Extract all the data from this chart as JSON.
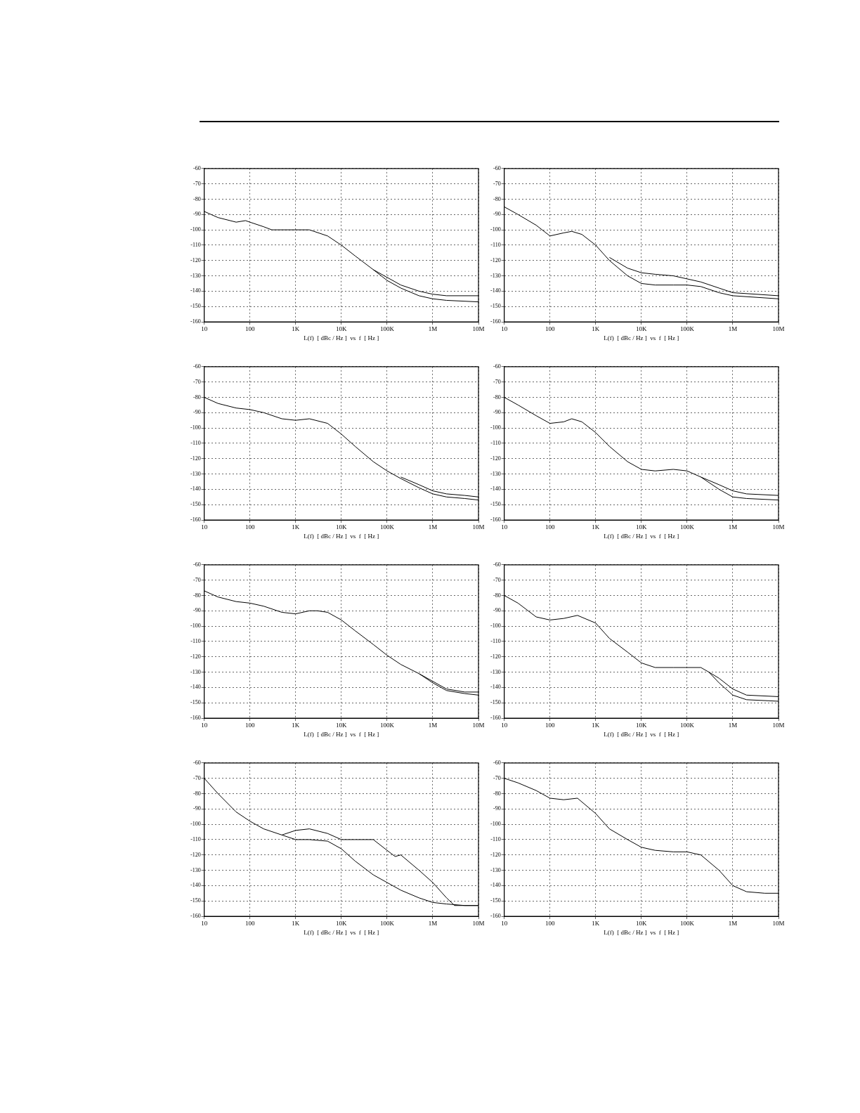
{
  "chart_data": [
    {
      "type": "line",
      "xlabel": "L(f)  [ dBc / Hz ]  vs  f  [ Hz ]",
      "log": "x",
      "grid": true,
      "legend": false,
      "marker": "none",
      "line_style": "solid",
      "xlim": [
        10,
        10000000
      ],
      "xticks": [
        {
          "value": 10,
          "label": "10"
        },
        {
          "value": 100,
          "label": "100"
        },
        {
          "value": 1000,
          "label": "1K"
        },
        {
          "value": 10000,
          "label": "10K"
        },
        {
          "value": 100000,
          "label": "100K"
        },
        {
          "value": 1000000,
          "label": "1M"
        },
        {
          "value": 10000000,
          "label": "10M"
        }
      ],
      "ylim": [
        -160,
        -60
      ],
      "yticks": [
        -160,
        -150,
        -140,
        -130,
        -120,
        -110,
        -100,
        -90,
        -80,
        -70,
        -60
      ],
      "series": [
        {
          "color": "#000000",
          "x": [
            10,
            20,
            50,
            80,
            100,
            200,
            300,
            1000,
            2000,
            5000,
            10000,
            20000,
            50000,
            100000,
            200000,
            500000,
            1000000,
            2000000,
            10000000
          ],
          "values": [
            -88,
            -92,
            -95,
            -94,
            -95,
            -98,
            -100,
            -100,
            -100,
            -104,
            -110,
            -117,
            -126,
            -133,
            -138,
            -143,
            -145,
            -146,
            -147
          ]
        },
        {
          "color": "#000000",
          "x": [
            50000,
            100000,
            200000,
            500000,
            1000000,
            2000000,
            10000000
          ],
          "values": [
            -126,
            -131,
            -136,
            -140,
            -142,
            -143,
            -143
          ]
        }
      ]
    },
    {
      "type": "line",
      "xlabel": "L(f)  [ dBc / Hz ]  vs  f  [ Hz ]",
      "log": "x",
      "grid": true,
      "legend": false,
      "marker": "none",
      "line_style": "solid",
      "xlim": [
        10,
        10000000
      ],
      "xticks": [
        {
          "value": 10,
          "label": "10"
        },
        {
          "value": 100,
          "label": "100"
        },
        {
          "value": 1000,
          "label": "1K"
        },
        {
          "value": 10000,
          "label": "10K"
        },
        {
          "value": 100000,
          "label": "100K"
        },
        {
          "value": 1000000,
          "label": "1M"
        },
        {
          "value": 10000000,
          "label": "10M"
        }
      ],
      "ylim": [
        -160,
        -60
      ],
      "yticks": [
        -160,
        -150,
        -140,
        -130,
        -120,
        -110,
        -100,
        -90,
        -80,
        -70,
        -60
      ],
      "series": [
        {
          "color": "#000000",
          "x": [
            10,
            20,
            50,
            100,
            200,
            300,
            500,
            1000,
            2000,
            5000,
            10000,
            20000,
            50000,
            100000,
            200000,
            500000,
            1000000,
            10000000
          ],
          "values": [
            -85,
            -90,
            -97,
            -104,
            -102,
            -101,
            -103,
            -110,
            -120,
            -130,
            -135,
            -136,
            -136,
            -136,
            -137,
            -141,
            -143,
            -145
          ]
        },
        {
          "color": "#000000",
          "x": [
            2000,
            5000,
            10000,
            20000,
            50000,
            100000,
            200000,
            500000,
            1000000,
            10000000
          ],
          "values": [
            -118,
            -125,
            -128,
            -129,
            -130,
            -132,
            -134,
            -138,
            -141,
            -143
          ]
        }
      ]
    },
    {
      "type": "line",
      "xlabel": "L(f)  [ dBc / Hz ]  vs  f  [ Hz ]",
      "log": "x",
      "grid": true,
      "legend": false,
      "marker": "none",
      "line_style": "solid",
      "xlim": [
        10,
        10000000
      ],
      "xticks": [
        {
          "value": 10,
          "label": "10"
        },
        {
          "value": 100,
          "label": "100"
        },
        {
          "value": 1000,
          "label": "1K"
        },
        {
          "value": 10000,
          "label": "10K"
        },
        {
          "value": 100000,
          "label": "100K"
        },
        {
          "value": 1000000,
          "label": "1M"
        },
        {
          "value": 10000000,
          "label": "10M"
        }
      ],
      "ylim": [
        -160,
        -60
      ],
      "yticks": [
        -160,
        -150,
        -140,
        -130,
        -120,
        -110,
        -100,
        -90,
        -80,
        -70,
        -60
      ],
      "series": [
        {
          "color": "#000000",
          "x": [
            10,
            20,
            50,
            100,
            200,
            500,
            1000,
            2000,
            5000,
            10000,
            20000,
            50000,
            100000,
            200000,
            500000,
            1000000,
            2000000,
            5000000,
            10000000
          ],
          "values": [
            -80,
            -84,
            -87,
            -88,
            -90,
            -94,
            -95,
            -94,
            -97,
            -104,
            -112,
            -122,
            -128,
            -133,
            -139,
            -143,
            -145,
            -146,
            -147
          ]
        },
        {
          "color": "#000000",
          "x": [
            200000,
            500000,
            1000000,
            2000000,
            5000000,
            10000000
          ],
          "values": [
            -132,
            -137,
            -141,
            -143,
            -144,
            -145
          ]
        }
      ]
    },
    {
      "type": "line",
      "xlabel": "L(f)  [ dBc / Hz ]  vs  f  [ Hz ]",
      "log": "x",
      "grid": true,
      "legend": false,
      "marker": "none",
      "line_style": "solid",
      "xlim": [
        10,
        10000000
      ],
      "xticks": [
        {
          "value": 10,
          "label": "10"
        },
        {
          "value": 100,
          "label": "100"
        },
        {
          "value": 1000,
          "label": "1K"
        },
        {
          "value": 10000,
          "label": "10K"
        },
        {
          "value": 100000,
          "label": "100K"
        },
        {
          "value": 1000000,
          "label": "1M"
        },
        {
          "value": 10000000,
          "label": "10M"
        }
      ],
      "ylim": [
        -160,
        -60
      ],
      "yticks": [
        -160,
        -150,
        -140,
        -130,
        -120,
        -110,
        -100,
        -90,
        -80,
        -70,
        -60
      ],
      "series": [
        {
          "color": "#000000",
          "x": [
            10,
            20,
            50,
            100,
            200,
            300,
            500,
            1000,
            2000,
            5000,
            10000,
            20000,
            50000,
            100000,
            200000,
            500000,
            1000000,
            2000000,
            10000000
          ],
          "values": [
            -80,
            -85,
            -92,
            -97,
            -96,
            -94,
            -96,
            -103,
            -112,
            -122,
            -127,
            -128,
            -127,
            -128,
            -132,
            -140,
            -145,
            -146,
            -147
          ]
        },
        {
          "color": "#000000",
          "x": [
            200000,
            500000,
            1000000,
            2000000,
            10000000
          ],
          "values": [
            -132,
            -137,
            -141,
            -143,
            -144
          ]
        }
      ]
    },
    {
      "type": "line",
      "xlabel": "L(f)  [ dBc / Hz ]  vs  f  [ Hz ]",
      "log": "x",
      "grid": true,
      "legend": false,
      "marker": "none",
      "line_style": "solid",
      "xlim": [
        10,
        10000000
      ],
      "xticks": [
        {
          "value": 10,
          "label": "10"
        },
        {
          "value": 100,
          "label": "100"
        },
        {
          "value": 1000,
          "label": "1K"
        },
        {
          "value": 10000,
          "label": "10K"
        },
        {
          "value": 100000,
          "label": "100K"
        },
        {
          "value": 1000000,
          "label": "1M"
        },
        {
          "value": 10000000,
          "label": "10M"
        }
      ],
      "ylim": [
        -160,
        -60
      ],
      "yticks": [
        -160,
        -150,
        -140,
        -130,
        -120,
        -110,
        -100,
        -90,
        -80,
        -70,
        -60
      ],
      "series": [
        {
          "color": "#000000",
          "x": [
            10,
            20,
            50,
            100,
            200,
            500,
            1000,
            2000,
            3000,
            5000,
            10000,
            20000,
            50000,
            100000,
            200000,
            500000,
            1000000,
            2000000,
            5000000,
            10000000
          ],
          "values": [
            -77,
            -81,
            -84,
            -85,
            -87,
            -91,
            -92,
            -90,
            -90,
            -91,
            -96,
            -103,
            -112,
            -119,
            -125,
            -131,
            -137,
            -142,
            -144,
            -145
          ]
        },
        {
          "color": "#000000",
          "x": [
            500000,
            1000000,
            2000000,
            5000000,
            10000000
          ],
          "values": [
            -131,
            -136,
            -141,
            -143,
            -143
          ]
        }
      ]
    },
    {
      "type": "line",
      "xlabel": "L(f)  [ dBc / Hz ]  vs  f  [ Hz ]",
      "log": "x",
      "grid": true,
      "legend": false,
      "marker": "none",
      "line_style": "solid",
      "xlim": [
        10,
        10000000
      ],
      "xticks": [
        {
          "value": 10,
          "label": "10"
        },
        {
          "value": 100,
          "label": "100"
        },
        {
          "value": 1000,
          "label": "1K"
        },
        {
          "value": 10000,
          "label": "10K"
        },
        {
          "value": 100000,
          "label": "100K"
        },
        {
          "value": 1000000,
          "label": "1M"
        },
        {
          "value": 10000000,
          "label": "10M"
        }
      ],
      "ylim": [
        -160,
        -60
      ],
      "yticks": [
        -160,
        -150,
        -140,
        -130,
        -120,
        -110,
        -100,
        -90,
        -80,
        -70,
        -60
      ],
      "series": [
        {
          "color": "#000000",
          "x": [
            10,
            20,
            50,
            100,
            200,
            400,
            1000,
            2000,
            5000,
            10000,
            20000,
            50000,
            100000,
            200000,
            300000,
            500000,
            1000000,
            2000000,
            10000000
          ],
          "values": [
            -80,
            -85,
            -94,
            -96,
            -95,
            -93,
            -98,
            -108,
            -117,
            -124,
            -127,
            -127,
            -127,
            -127,
            -130,
            -137,
            -145,
            -148,
            -149
          ]
        },
        {
          "color": "#000000",
          "x": [
            300000,
            500000,
            1000000,
            2000000,
            10000000
          ],
          "values": [
            -130,
            -134,
            -141,
            -145,
            -146
          ]
        }
      ]
    },
    {
      "type": "line",
      "xlabel": "L(f)  [ dBc / Hz ]  vs  f  [ Hz ]",
      "log": "x",
      "grid": true,
      "legend": false,
      "marker": "none",
      "line_style": "solid",
      "xlim": [
        10,
        10000000
      ],
      "xticks": [
        {
          "value": 10,
          "label": "10"
        },
        {
          "value": 100,
          "label": "100"
        },
        {
          "value": 1000,
          "label": "1K"
        },
        {
          "value": 10000,
          "label": "10K"
        },
        {
          "value": 100000,
          "label": "100K"
        },
        {
          "value": 1000000,
          "label": "1M"
        },
        {
          "value": 10000000,
          "label": "10M"
        }
      ],
      "ylim": [
        -160,
        -60
      ],
      "yticks": [
        -160,
        -150,
        -140,
        -130,
        -120,
        -110,
        -100,
        -90,
        -80,
        -70,
        -60
      ],
      "series": [
        {
          "color": "#000000",
          "x": [
            10,
            20,
            50,
            100,
            200,
            500,
            1000,
            2000,
            5000,
            10000,
            20000,
            50000,
            100000,
            150000,
            200000,
            500000,
            1000000,
            2000000,
            3000000,
            10000000
          ],
          "values": [
            -70,
            -80,
            -92,
            -98,
            -103,
            -107,
            -104,
            -103,
            -106,
            -110,
            -110,
            -110,
            -117,
            -121,
            -120,
            -130,
            -138,
            -148,
            -153,
            -153
          ]
        },
        {
          "color": "#000000",
          "x": [
            500,
            1000,
            2000,
            5000,
            10000,
            20000,
            50000,
            100000,
            200000,
            500000,
            1000000,
            2000000,
            5000000,
            10000000
          ],
          "values": [
            -107,
            -110,
            -110,
            -111,
            -116,
            -124,
            -133,
            -138,
            -143,
            -148,
            -151,
            -152,
            -153,
            -153
          ]
        }
      ]
    },
    {
      "type": "line",
      "xlabel": "L(f)  [ dBc / Hz ]  vs  f  [ Hz ]",
      "log": "x",
      "grid": true,
      "legend": false,
      "marker": "none",
      "line_style": "solid",
      "xlim": [
        10,
        10000000
      ],
      "xticks": [
        {
          "value": 10,
          "label": "10"
        },
        {
          "value": 100,
          "label": "100"
        },
        {
          "value": 1000,
          "label": "1K"
        },
        {
          "value": 10000,
          "label": "10K"
        },
        {
          "value": 100000,
          "label": "100K"
        },
        {
          "value": 1000000,
          "label": "1M"
        },
        {
          "value": 10000000,
          "label": "10M"
        }
      ],
      "ylim": [
        -160,
        -60
      ],
      "yticks": [
        -160,
        -150,
        -140,
        -130,
        -120,
        -110,
        -100,
        -90,
        -80,
        -70,
        -60
      ],
      "series": [
        {
          "color": "#000000",
          "x": [
            10,
            20,
            50,
            100,
            200,
            400,
            1000,
            2000,
            5000,
            10000,
            20000,
            50000,
            100000,
            200000,
            500000,
            1000000,
            2000000,
            5000000,
            10000000
          ],
          "values": [
            -70,
            -73,
            -78,
            -83,
            -84,
            -83,
            -93,
            -103,
            -110,
            -115,
            -117,
            -118,
            -118,
            -120,
            -130,
            -140,
            -144,
            -145,
            -145
          ]
        }
      ]
    }
  ]
}
